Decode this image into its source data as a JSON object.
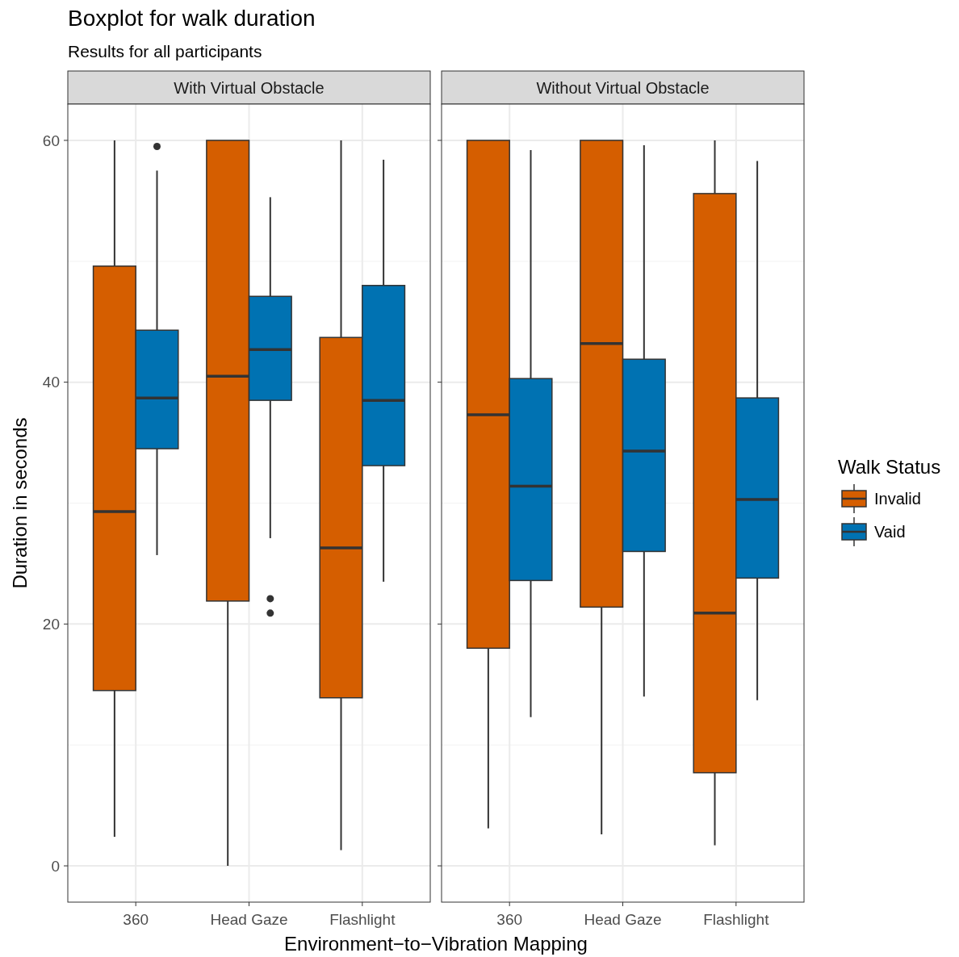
{
  "chart_data": [
    {
      "type": "box",
      "title": "With Virtual Obstacle",
      "annotations": [
        "Boxplot for walk duration",
        "Results for all participants"
      ],
      "xlabel": "Environment−to−Vibration Mapping",
      "ylabel": "Duration in seconds",
      "categories": [
        "360",
        "Head Gaze",
        "Flashlight"
      ],
      "ylim": [
        -3,
        63
      ],
      "yticks": [
        0,
        20,
        40,
        60
      ],
      "grid": true,
      "legend": "right",
      "legend_title": "Walk Status",
      "series": [
        {
          "name": "Invalid",
          "color": "#d55e00",
          "boxes": [
            {
              "low": 2.4,
              "q1": 14.5,
              "median": 29.3,
              "q3": 49.6,
              "high": 60
            },
            {
              "low": 0,
              "q1": 21.9,
              "median": 40.5,
              "q3": 60,
              "high": 60
            },
            {
              "low": 1.3,
              "q1": 13.9,
              "median": 26.3,
              "q3": 43.7,
              "high": 60
            }
          ]
        },
        {
          "name": "Vaid",
          "color": "#0072b2",
          "boxes": [
            {
              "low": 25.7,
              "q1": 34.5,
              "median": 38.7,
              "q3": 44.3,
              "high": 57.5,
              "outliers": [
                59.5
              ]
            },
            {
              "low": 27.1,
              "q1": 38.5,
              "median": 42.7,
              "q3": 47.1,
              "high": 55.3,
              "outliers": [
                22.1,
                20.9
              ]
            },
            {
              "low": 23.5,
              "q1": 33.1,
              "median": 38.5,
              "q3": 48,
              "high": 58.4
            }
          ]
        }
      ]
    },
    {
      "type": "box",
      "title": "Without Virtual Obstacle",
      "categories": [
        "360",
        "Head Gaze",
        "Flashlight"
      ],
      "ylim": [
        -3,
        63
      ],
      "yticks": [
        0,
        20,
        40,
        60
      ],
      "grid": true,
      "tick_labels": "x",
      "series": [
        {
          "color": "#d55e00",
          "boxes": [
            {
              "low": 3.1,
              "q1": 18,
              "median": 37.3,
              "q3": 60,
              "high": 60
            },
            {
              "low": 2.6,
              "q1": 21.4,
              "median": 43.2,
              "q3": 60,
              "high": 60
            },
            {
              "low": 1.7,
              "q1": 7.7,
              "median": 20.9,
              "q3": 55.6,
              "high": 60
            }
          ]
        },
        {
          "color": "#0072b2",
          "boxes": [
            {
              "low": 12.3,
              "q1": 23.6,
              "median": 31.4,
              "q3": 40.3,
              "high": 59.2
            },
            {
              "low": 14,
              "q1": 26,
              "median": 34.3,
              "q3": 41.9,
              "high": 59.6
            },
            {
              "low": 13.7,
              "q1": 23.8,
              "median": 30.3,
              "q3": 38.7,
              "high": 58.3
            }
          ]
        }
      ]
    }
  ]
}
